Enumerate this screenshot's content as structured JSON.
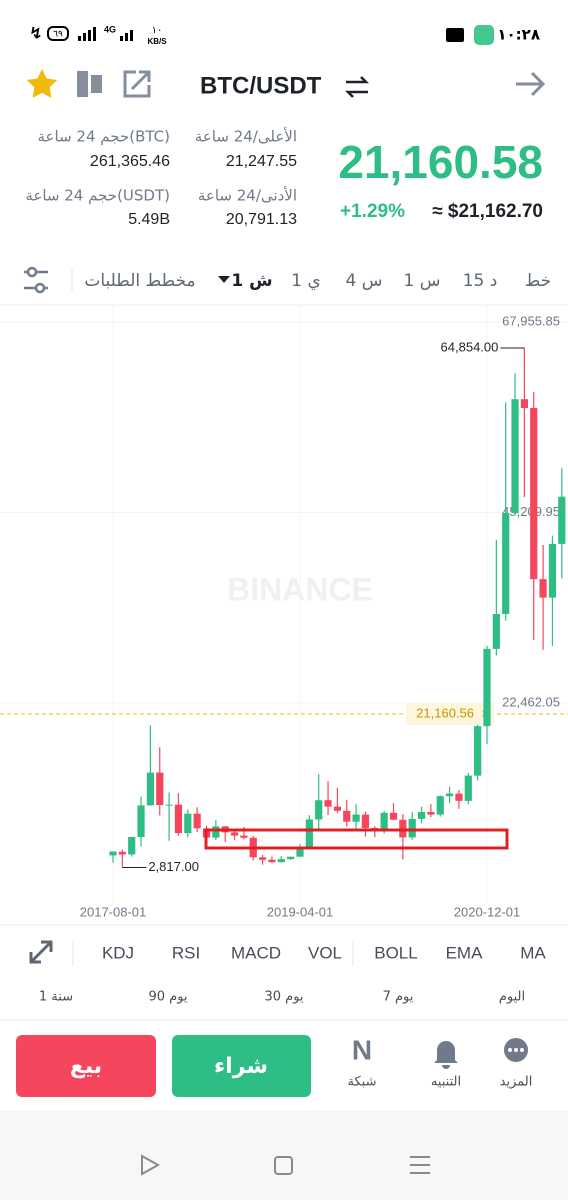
{
  "status_bar": {
    "time": "١٠:٢٨",
    "battery": "٦٩",
    "network": "4G",
    "speed_value": "١٠",
    "speed_unit": "KB/S"
  },
  "header": {
    "pair": "BTC/USDT"
  },
  "stats": {
    "vol_btc_label": "حجم 24 ساعة(BTC)",
    "vol_btc": "261,365.46",
    "high_label": "الأعلى/24 ساعة",
    "high": "21,247.55",
    "vol_usdt_label": "حجم 24 ساعة(USDT)",
    "vol_usdt": "5.49B",
    "low_label": "الأدنى/24 ساعة",
    "low": "20,791.13",
    "price": "21,160.58",
    "change": "+1.29%",
    "usd_price": "≈ $21,162.70"
  },
  "timeframes": [
    "خط",
    "15 د",
    "1 س",
    "4 س",
    "1 ي",
    "1 ش",
    "مخطط الطلبات"
  ],
  "chart_data": {
    "type": "candlestick",
    "watermark": "BINANCE",
    "categories": [
      "2017-08-01",
      null,
      null,
      null,
      null,
      null,
      null,
      null,
      null,
      null,
      null,
      null,
      null,
      null,
      null,
      null,
      null,
      null,
      null,
      null,
      "2019-04-01",
      null,
      null,
      null,
      null,
      null,
      null,
      null,
      null,
      null,
      null,
      null,
      null,
      null,
      null,
      null,
      null,
      null,
      null,
      null,
      "2020-12-01",
      null,
      null,
      null,
      null,
      null,
      null,
      null,
      null
    ],
    "open": [
      4261,
      4689,
      4378,
      6463,
      10233,
      14156,
      10285,
      10326,
      6923,
      9246,
      7494,
      6391,
      7730,
      7011,
      6626,
      6371,
      4041,
      3742,
      3458,
      3813,
      4106,
      5321,
      8555,
      10854,
      10085,
      9588,
      8289,
      9140,
      7540,
      7195,
      9352,
      8523,
      6410,
      8620,
      9448,
      9138,
      11335,
      11650,
      10777,
      13791,
      19695,
      28923,
      33092,
      45135,
      58741,
      57694,
      37253,
      35045,
      41461
    ],
    "high": [
      4745,
      4939,
      6470,
      11300,
      19798,
      17176,
      11786,
      11700,
      9759,
      10020,
      7780,
      8507,
      7770,
      7410,
      7680,
      6600,
      4313,
      4140,
      4198,
      4120,
      5600,
      9074,
      13970,
      13147,
      12325,
      10905,
      10370,
      9505,
      7750,
      9578,
      10500,
      9189,
      9460,
      10067,
      10380,
      11444,
      12468,
      12067,
      14100,
      19863,
      29300,
      41950,
      58352,
      61845,
      64854,
      59592,
      41330,
      42448,
      50500
    ],
    "low": [
      3400,
      2817,
      4110,
      5325,
      10233,
      9035,
      6000,
      6600,
      6430,
      7032,
      5755,
      6070,
      5880,
      6100,
      6180,
      3652,
      3156,
      3349,
      3400,
      3733,
      4096,
      5320,
      7440,
      9080,
      9320,
      7710,
      7300,
      6515,
      6435,
      6854,
      8450,
      3782,
      6150,
      8106,
      8833,
      8893,
      10518,
      9825,
      10375,
      13195,
      17572,
      28130,
      32296,
      44950,
      47044,
      30000,
      28805,
      29278,
      37332
    ],
    "close": [
      4724,
      4378,
      6463,
      10233,
      14156,
      10285,
      10326,
      6923,
      9246,
      7494,
      6391,
      7730,
      7011,
      6626,
      6371,
      4041,
      3742,
      3458,
      3813,
      4106,
      5321,
      8555,
      10854,
      10085,
      9588,
      8289,
      9140,
      7540,
      7195,
      9352,
      8523,
      6410,
      8620,
      9448,
      9138,
      11335,
      11650,
      10777,
      13791,
      19695,
      28923,
      33092,
      45135,
      58741,
      57694,
      37253,
      35045,
      41461,
      47100
    ],
    "up_color": "#2ebd85",
    "down_color": "#f6465d",
    "ylim": [
      -1660,
      69990
    ],
    "yticks": [
      {
        "value": 22462.05,
        "label": "22,462.05"
      },
      {
        "value": 45209.95,
        "label": "45,209.95"
      },
      {
        "value": 67955.85,
        "label": "67,955.85"
      }
    ],
    "max_marker": {
      "value": 64854,
      "label": "64,854.00"
    },
    "min_marker": {
      "value": 2817,
      "label": "2,817.00"
    },
    "last_price": {
      "value": 21160.56,
      "label": "21,160.56"
    },
    "grid": true
  },
  "indicators": [
    "MA",
    "EMA",
    "BOLL",
    "VOL",
    "MACD",
    "RSI",
    "KDJ"
  ],
  "periods": [
    "اليوم",
    "7 يوم",
    "30 يوم",
    "90 يوم",
    "1 سنة"
  ],
  "actions": {
    "sell": "بيع",
    "buy": "شراء"
  },
  "nav": [
    "المزيد",
    "التنبيه",
    "شبكة"
  ]
}
